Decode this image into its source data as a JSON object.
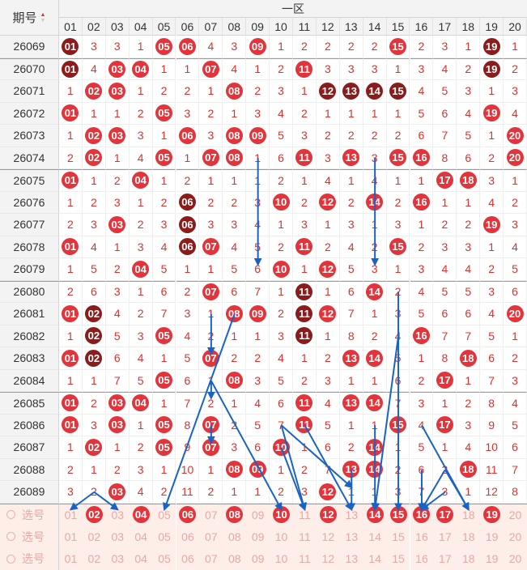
{
  "header": {
    "period_label": "期号",
    "zone_label": "一区",
    "columns": [
      "01",
      "02",
      "03",
      "04",
      "05",
      "06",
      "07",
      "08",
      "09",
      "10",
      "11",
      "12",
      "13",
      "14",
      "15",
      "16",
      "17",
      "18",
      "19",
      "20"
    ]
  },
  "colors": {
    "red_ball": "#e2343a",
    "dark_ball": "#8b1c1c",
    "miss_text": "#e0302c",
    "arrow": "#1a63c6",
    "select_bg": "#fdeee9"
  },
  "rows": [
    {
      "period": "26069",
      "cells": [
        "d01",
        "3",
        "3",
        "1",
        "r05",
        "r06",
        "4",
        "3",
        "r09",
        "1",
        "2",
        "2",
        "2",
        "2",
        "r15",
        "2",
        "3",
        "1",
        "d19",
        "1"
      ]
    },
    {
      "period": "26070",
      "cells": [
        "d01",
        "4",
        "r03",
        "r04",
        "1",
        "1",
        "r07",
        "4",
        "1",
        "2",
        "r11",
        "3",
        "3",
        "3",
        "1",
        "3",
        "4",
        "2",
        "d19",
        "2"
      ]
    },
    {
      "period": "26071",
      "cells": [
        "1",
        "r02",
        "r03",
        "1",
        "2",
        "2",
        "1",
        "r08",
        "2",
        "3",
        "1",
        "d12",
        "d13",
        "d14",
        "d15",
        "4",
        "5",
        "3",
        "1",
        "3"
      ]
    },
    {
      "period": "26072",
      "cells": [
        "r01",
        "1",
        "1",
        "2",
        "r05",
        "3",
        "2",
        "1",
        "3",
        "4",
        "2",
        "1",
        "1",
        "1",
        "1",
        "5",
        "6",
        "4",
        "r19",
        "4"
      ]
    },
    {
      "period": "26073",
      "cells": [
        "1",
        "r02",
        "r03",
        "3",
        "1",
        "r06",
        "3",
        "r08",
        "r09",
        "5",
        "3",
        "2",
        "2",
        "2",
        "2",
        "6",
        "7",
        "5",
        "1",
        "r20"
      ]
    },
    {
      "period": "26074",
      "cells": [
        "2",
        "r02",
        "1",
        "4",
        "r05",
        "1",
        "r07",
        "r08",
        "1",
        "6",
        "r11",
        "3",
        "r13",
        "3",
        "r15",
        "r16",
        "8",
        "6",
        "2",
        "r20"
      ]
    },
    {
      "period": "26075",
      "cells": [
        "r01",
        "1",
        "2",
        "r04",
        "1",
        "2",
        "1",
        "1",
        "1",
        "2",
        "1",
        "4",
        "1",
        "4",
        "1",
        "1",
        "r17",
        "r18",
        "3",
        "1"
      ]
    },
    {
      "period": "26076",
      "cells": [
        "1",
        "2",
        "3",
        "1",
        "2",
        "d06",
        "2",
        "2",
        "3",
        "r10",
        "2",
        "r12",
        "2",
        "r14",
        "2",
        "r16",
        "1",
        "1",
        "4",
        "2"
      ]
    },
    {
      "period": "26077",
      "cells": [
        "2",
        "3",
        "r03",
        "2",
        "3",
        "d06",
        "3",
        "3",
        "4",
        "1",
        "3",
        "1",
        "3",
        "1",
        "3",
        "1",
        "2",
        "2",
        "r19",
        "3"
      ]
    },
    {
      "period": "26078",
      "cells": [
        "r01",
        "4",
        "1",
        "3",
        "4",
        "d06",
        "r07",
        "4",
        "5",
        "2",
        "r11",
        "2",
        "4",
        "2",
        "r15",
        "2",
        "3",
        "3",
        "1",
        "4"
      ]
    },
    {
      "period": "26079",
      "cells": [
        "1",
        "5",
        "2",
        "r04",
        "5",
        "1",
        "1",
        "5",
        "6",
        "r10",
        "1",
        "r12",
        "5",
        "3",
        "1",
        "3",
        "4",
        "4",
        "2",
        "5"
      ]
    },
    {
      "period": "26080",
      "cells": [
        "2",
        "6",
        "3",
        "1",
        "6",
        "2",
        "r07",
        "6",
        "7",
        "1",
        "d11",
        "1",
        "6",
        "r14",
        "2",
        "4",
        "5",
        "5",
        "3",
        "6"
      ]
    },
    {
      "period": "26081",
      "cells": [
        "r01",
        "d02",
        "4",
        "2",
        "7",
        "3",
        "1",
        "r08",
        "r09",
        "2",
        "d11",
        "r12",
        "7",
        "1",
        "3",
        "5",
        "6",
        "6",
        "4",
        "r20"
      ]
    },
    {
      "period": "26082",
      "cells": [
        "1",
        "d02",
        "5",
        "3",
        "r05",
        "4",
        "2",
        "1",
        "1",
        "3",
        "d11",
        "1",
        "8",
        "2",
        "4",
        "r16",
        "7",
        "7",
        "5",
        "1"
      ]
    },
    {
      "period": "26083",
      "cells": [
        "r01",
        "d02",
        "6",
        "4",
        "1",
        "5",
        "r07",
        "2",
        "2",
        "4",
        "1",
        "2",
        "r13",
        "r14",
        "5",
        "1",
        "8",
        "r18",
        "6",
        "2"
      ]
    },
    {
      "period": "26084",
      "cells": [
        "1",
        "1",
        "7",
        "5",
        "r05",
        "6",
        "1",
        "r08",
        "3",
        "5",
        "2",
        "3",
        "1",
        "1",
        "6",
        "2",
        "r17",
        "1",
        "7",
        "3"
      ]
    },
    {
      "period": "26085",
      "cells": [
        "r01",
        "2",
        "r03",
        "r04",
        "1",
        "7",
        "2",
        "1",
        "4",
        "6",
        "r11",
        "4",
        "r13",
        "r14",
        "7",
        "3",
        "1",
        "2",
        "8",
        "4"
      ]
    },
    {
      "period": "26086",
      "cells": [
        "r01",
        "3",
        "r03",
        "1",
        "r05",
        "8",
        "r07",
        "2",
        "5",
        "7",
        "r11",
        "5",
        "1",
        "1",
        "r15",
        "4",
        "r17",
        "3",
        "9",
        "5"
      ]
    },
    {
      "period": "26087",
      "cells": [
        "1",
        "r02",
        "1",
        "2",
        "r05",
        "9",
        "r07",
        "3",
        "6",
        "r10",
        "1",
        "6",
        "2",
        "r14",
        "1",
        "5",
        "1",
        "4",
        "10",
        "6"
      ]
    },
    {
      "period": "26088",
      "cells": [
        "2",
        "1",
        "2",
        "3",
        "1",
        "10",
        "1",
        "r08",
        "r09",
        "1",
        "2",
        "7",
        "r13",
        "r14",
        "2",
        "6",
        "2",
        "r18",
        "11",
        "7"
      ]
    },
    {
      "period": "26089",
      "cells": [
        "3",
        "2",
        "r03",
        "4",
        "2",
        "11",
        "2",
        "1",
        "1",
        "2",
        "3",
        "r12",
        "1",
        "1",
        "3",
        "7",
        "3",
        "1",
        "12",
        "8"
      ]
    }
  ],
  "selection_rows": [
    {
      "label": "选号",
      "cells": [
        "01",
        "r02",
        "03",
        "r04",
        "05",
        "r06",
        "07",
        "r08",
        "09",
        "r10",
        "11",
        "r12",
        "13",
        "r14",
        "r15",
        "r16",
        "r17",
        "18",
        "r19",
        "20"
      ]
    },
    {
      "label": "选号",
      "cells": [
        "01",
        "02",
        "03",
        "04",
        "05",
        "06",
        "07",
        "08",
        "09",
        "10",
        "11",
        "12",
        "13",
        "14",
        "15",
        "16",
        "17",
        "18",
        "19",
        "20"
      ]
    },
    {
      "label": "选号",
      "cells": [
        "01",
        "02",
        "03",
        "04",
        "05",
        "06",
        "07",
        "08",
        "09",
        "10",
        "11",
        "12",
        "13",
        "14",
        "15",
        "16",
        "17",
        "18",
        "19",
        "20"
      ]
    }
  ],
  "arrows": [
    {
      "from": [
        9,
        5
      ],
      "to": [
        9,
        10
      ]
    },
    {
      "from": [
        14,
        5
      ],
      "to": [
        14,
        10
      ]
    },
    {
      "from": [
        7,
        12
      ],
      "to": [
        7,
        14
      ]
    },
    {
      "from": [
        8,
        12
      ],
      "to": [
        5,
        21
      ]
    },
    {
      "from": [
        7,
        15
      ],
      "to": [
        7,
        16
      ]
    },
    {
      "from": [
        7,
        17
      ],
      "to": [
        7,
        18
      ]
    },
    {
      "from": [
        7,
        15
      ],
      "to": [
        10,
        21
      ]
    },
    {
      "from": [
        10,
        17
      ],
      "to": [
        11,
        21
      ]
    },
    {
      "from": [
        10,
        17
      ],
      "to": [
        13,
        20
      ]
    },
    {
      "from": [
        13,
        19
      ],
      "to": [
        13,
        21
      ]
    },
    {
      "from": [
        14,
        17
      ],
      "to": [
        14,
        21
      ]
    },
    {
      "from": [
        15,
        11
      ],
      "to": [
        15,
        21
      ]
    },
    {
      "from": [
        15,
        13
      ],
      "to": [
        14,
        21
      ]
    },
    {
      "from": [
        16,
        17
      ],
      "to": [
        18,
        21
      ]
    },
    {
      "from": [
        17,
        19
      ],
      "to": [
        16,
        21
      ]
    },
    {
      "from": [
        16,
        19
      ],
      "to": [
        16,
        21
      ]
    },
    {
      "from": [
        17,
        20
      ],
      "to": [
        16,
        21
      ]
    },
    {
      "from": [
        17,
        19
      ],
      "to": [
        18,
        21
      ]
    },
    {
      "from": [
        2,
        20
      ],
      "to": [
        1,
        21
      ]
    },
    {
      "from": [
        2,
        20
      ],
      "to": [
        3,
        21
      ]
    },
    {
      "from": [
        11,
        17
      ],
      "to": [
        13,
        21
      ]
    },
    {
      "from": [
        10,
        18
      ],
      "to": [
        11,
        21
      ]
    }
  ]
}
